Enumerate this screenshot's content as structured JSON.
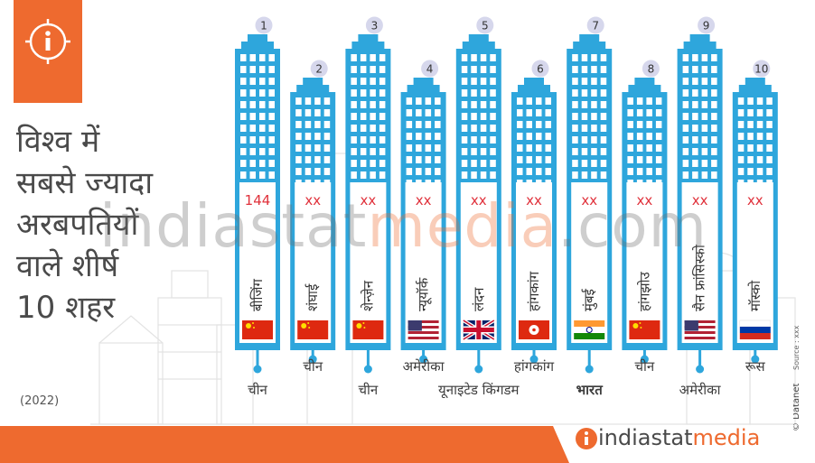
{
  "title_lines": [
    "विश्व में",
    "सबसे ज्यादा",
    "अरबपतियों",
    "वाले शीर्ष",
    "10 शहर"
  ],
  "year": "(2022)",
  "watermark": {
    "part1": "indiastat",
    "part2": "media",
    "part3": ".com"
  },
  "brand": {
    "part1": "indiastat",
    "part2": "media"
  },
  "source_text": "Source : xxx",
  "datanet_text": "© Datanet",
  "colors": {
    "accent": "#ee6a2f",
    "building": "#2ea6dc",
    "window": "#ffffff",
    "value": "#e0313b",
    "rank_badge": "#d6d7ec"
  },
  "chart_data": {
    "type": "bar",
    "title": "विश्व में सबसे ज्यादा अरबपतियों वाले शीर्ष 10 शहर",
    "categories": [
      {
        "rank": "1",
        "city": "बीजिंग",
        "country": "चीन",
        "value": "144",
        "flag": "china-flag"
      },
      {
        "rank": "2",
        "city": "शंघाई",
        "country": "चीन",
        "value": "xx",
        "flag": "china-flag"
      },
      {
        "rank": "3",
        "city": "शेन्ज़ेन",
        "country": "चीन",
        "value": "xx",
        "flag": "china-flag"
      },
      {
        "rank": "4",
        "city": "न्यूयॉर्क",
        "country": "अमेरीका",
        "value": "xx",
        "flag": "usa-flag"
      },
      {
        "rank": "5",
        "city": "लंदन",
        "country": "यूनाइटेड किंगडम",
        "value": "xx",
        "flag": "uk-flag"
      },
      {
        "rank": "6",
        "city": "हांगकांग",
        "country": "हांगकांग",
        "value": "xx",
        "flag": "hongkong-flag"
      },
      {
        "rank": "7",
        "city": "मुंबई",
        "country": "भारत",
        "value": "xx",
        "flag": "india-flag"
      },
      {
        "rank": "8",
        "city": "हांगझोउ",
        "country": "चीन",
        "value": "xx",
        "flag": "china-flag"
      },
      {
        "rank": "9",
        "city": "सैन फ्रांसिस्को",
        "country": "अमेरीका",
        "value": "xx",
        "flag": "usa-flag"
      },
      {
        "rank": "10",
        "city": "मॉस्को",
        "country": "रूस",
        "value": "xx",
        "flag": "russia-flag"
      }
    ]
  }
}
